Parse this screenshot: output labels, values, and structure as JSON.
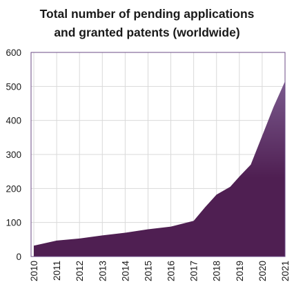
{
  "chart_data": {
    "type": "area",
    "title_lines": [
      "Total number of pending applications",
      "and granted patents (worldwide)"
    ],
    "xlabel": "",
    "ylabel": "",
    "x": [
      "2010",
      "2011",
      "2012",
      "2013",
      "2014",
      "2015",
      "2016",
      "2017",
      "2018",
      "2019",
      "2020",
      "2021"
    ],
    "y_points": [
      {
        "x": 2010.0,
        "y": 32
      },
      {
        "x": 2011.0,
        "y": 47
      },
      {
        "x": 2012.0,
        "y": 53
      },
      {
        "x": 2013.0,
        "y": 62
      },
      {
        "x": 2014.0,
        "y": 70
      },
      {
        "x": 2015.0,
        "y": 80
      },
      {
        "x": 2016.0,
        "y": 88
      },
      {
        "x": 2017.0,
        "y": 105
      },
      {
        "x": 2017.5,
        "y": 145
      },
      {
        "x": 2018.0,
        "y": 182
      },
      {
        "x": 2018.6,
        "y": 205
      },
      {
        "x": 2019.0,
        "y": 235
      },
      {
        "x": 2019.5,
        "y": 270
      },
      {
        "x": 2020.0,
        "y": 355
      },
      {
        "x": 2020.5,
        "y": 440
      },
      {
        "x": 2021.0,
        "y": 515
      }
    ],
    "ylim": [
      0,
      600
    ],
    "yticks": [
      "0",
      "100",
      "200",
      "300",
      "400",
      "500",
      "600"
    ],
    "grid": true,
    "legend": "none",
    "colors": {
      "fill_top": "#7b5a8e",
      "fill_bottom": "#4f1f52",
      "border": "#6b4a86",
      "grid": "#d9d9d9"
    }
  }
}
